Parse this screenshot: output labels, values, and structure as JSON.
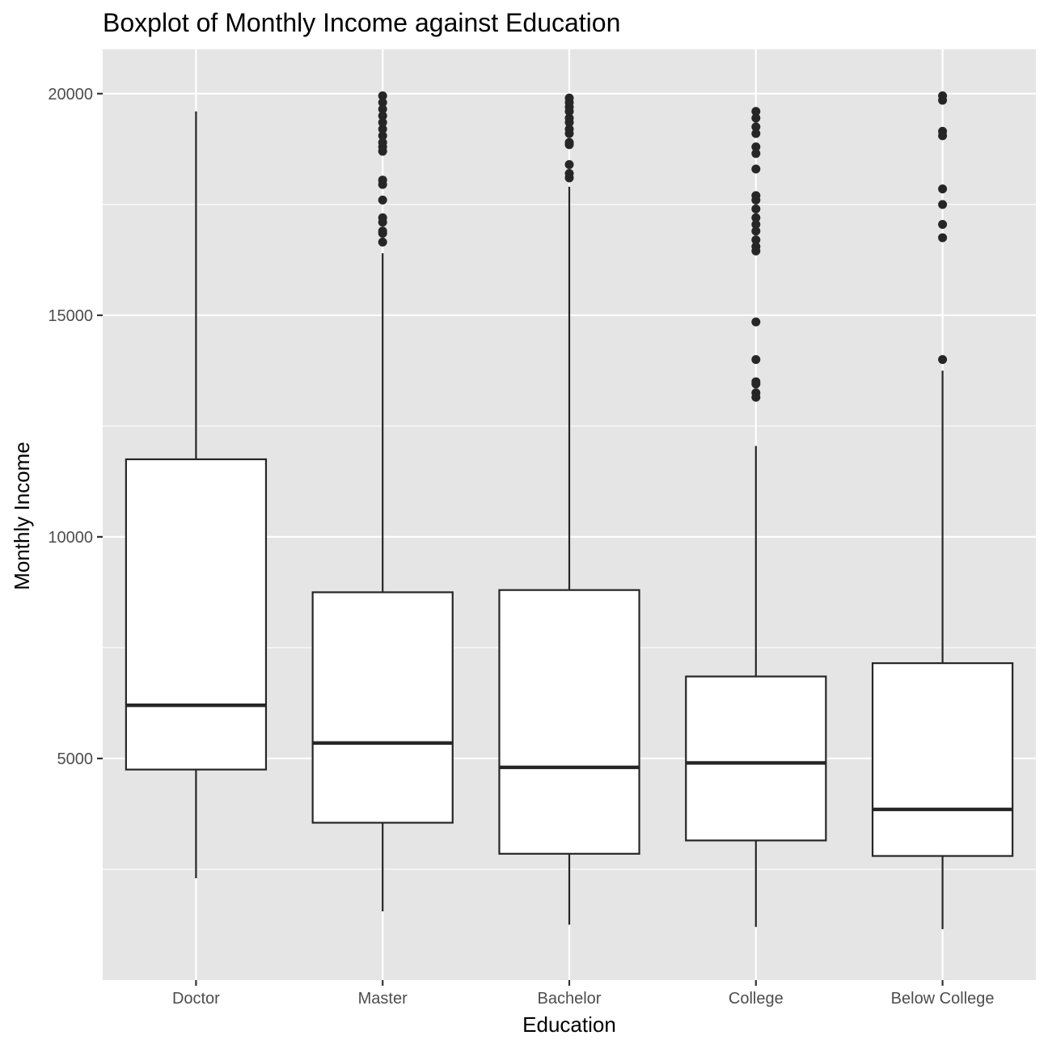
{
  "chart_data": {
    "type": "boxplot",
    "title": "Boxplot of Monthly Income against Education",
    "xlabel": "Education",
    "ylabel": "Monthly Income",
    "categories": [
      "Doctor",
      "Master",
      "Bachelor",
      "College",
      "Below College"
    ],
    "ylim": [
      0,
      21000
    ],
    "yticks": [
      5000,
      10000,
      15000,
      20000
    ],
    "grid": true,
    "legend": "none",
    "colors": {
      "panel_background": "#e5e5e5",
      "grid": "#ffffff",
      "box_fill": "#ffffff",
      "box_stroke": "#262626",
      "outlier": "#262626"
    },
    "boxes": [
      {
        "category": "Doctor",
        "whisker_low": 2300,
        "q1": 4750,
        "median": 6200,
        "q3": 11750,
        "whisker_high": 19600,
        "outliers": []
      },
      {
        "category": "Master",
        "whisker_low": 1550,
        "q1": 3550,
        "median": 5350,
        "q3": 8750,
        "whisker_high": 16400,
        "outliers": [
          16650,
          16850,
          16900,
          17100,
          17200,
          17600,
          17950,
          18050,
          18700,
          18800,
          18900,
          19050,
          19200,
          19350,
          19500,
          19650,
          19800,
          19950
        ]
      },
      {
        "category": "Bachelor",
        "whisker_low": 1250,
        "q1": 2850,
        "median": 4800,
        "q3": 8800,
        "whisker_high": 17900,
        "outliers": [
          18100,
          18200,
          18400,
          18850,
          18900,
          19100,
          19200,
          19350,
          19450,
          19600,
          19700,
          19800,
          19900
        ]
      },
      {
        "category": "College",
        "whisker_low": 1200,
        "q1": 3150,
        "median": 4900,
        "q3": 6850,
        "whisker_high": 12050,
        "outliers": [
          13150,
          13250,
          13450,
          13500,
          14000,
          14850,
          16450,
          16550,
          16700,
          16900,
          17050,
          17200,
          17400,
          17600,
          17700,
          18300,
          18650,
          18800,
          19100,
          19250,
          19450,
          19600
        ]
      },
      {
        "category": "Below College",
        "whisker_low": 1150,
        "q1": 2800,
        "median": 3850,
        "q3": 7150,
        "whisker_high": 13750,
        "outliers": [
          14000,
          16750,
          17050,
          17500,
          17850,
          19050,
          19150,
          19850,
          19950
        ]
      }
    ]
  }
}
